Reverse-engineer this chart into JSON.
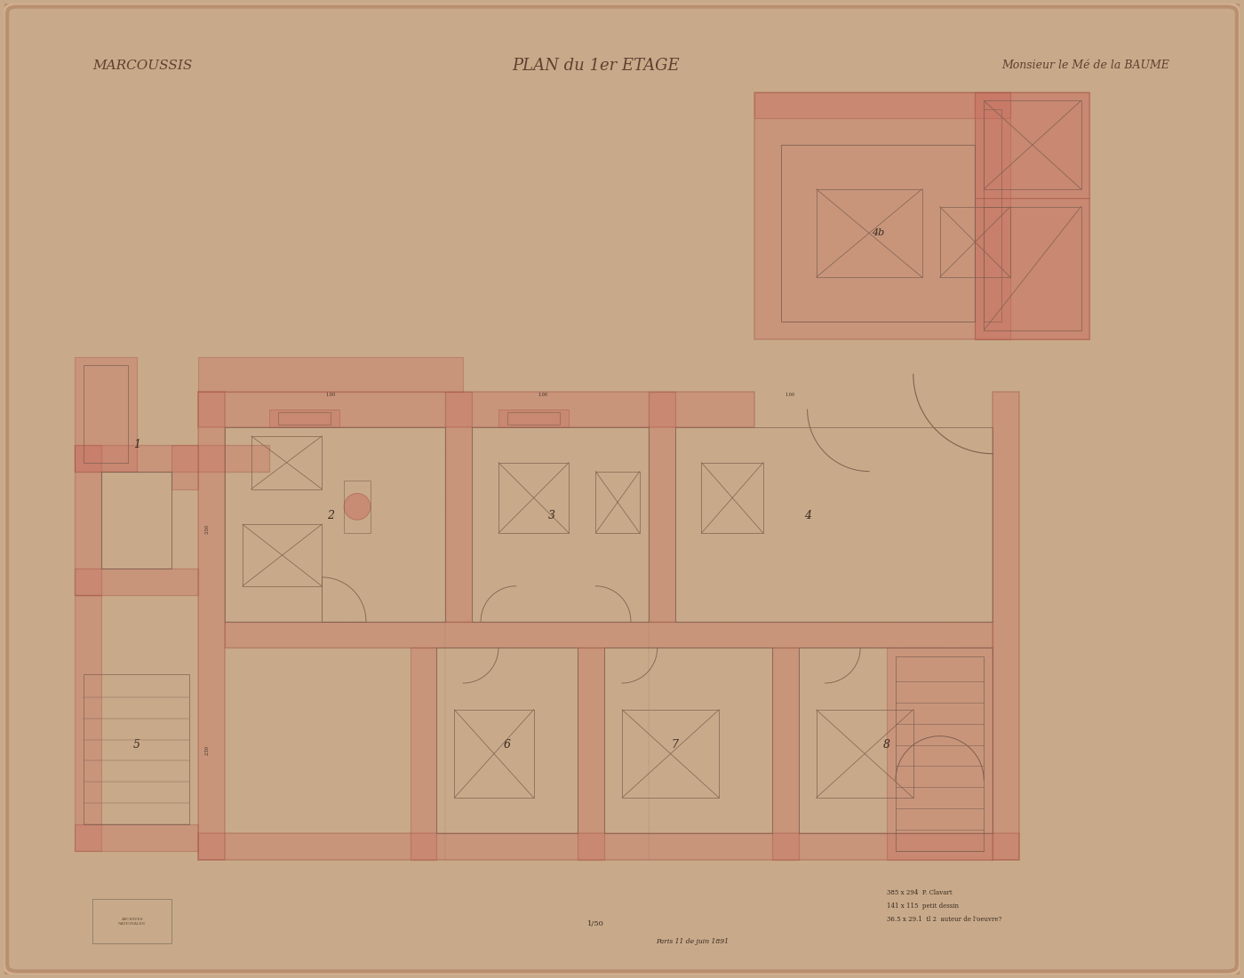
{
  "title_left": "MARCOUSSIS",
  "title_center": "PLAN du 1er ETAGE",
  "title_right": "Monsieur le Mé de la BAUME",
  "bg_outer": "#c8aa8a",
  "bg_paper": "#e8d0b5",
  "wall_fill": "#c87060",
  "wall_fill_alpha": 0.35,
  "wall_line_color": "#a05040",
  "room_line_color": "#806050",
  "annotation_color": "#3a2a20",
  "scale_note": "1/50",
  "bottom_note1": "385 x 294  P. Clavart",
  "bottom_note2": "141 x 115  petit dessin",
  "bottom_note3": "36.5 x 29.1  tl 2  auteur de l'oeuvre?",
  "bottom_right_note": "Paris 11 de juin 1891"
}
